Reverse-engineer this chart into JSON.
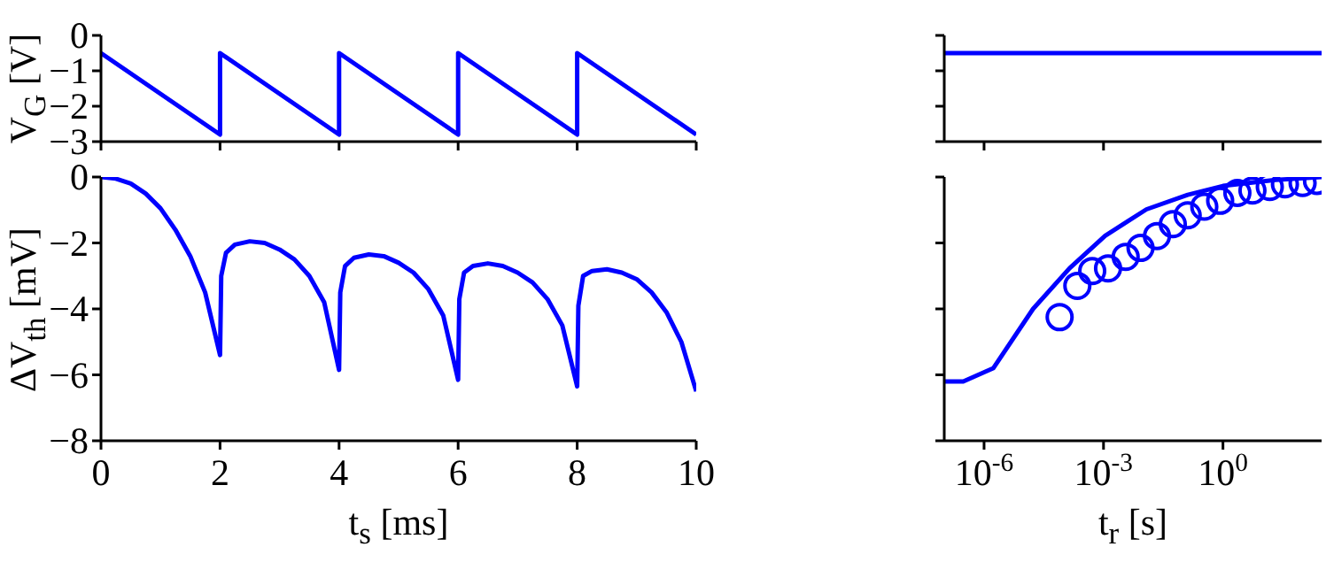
{
  "chart_data": [
    {
      "type": "line",
      "ylabel": "V$_{G}$ [V]",
      "xlim": [
        0,
        10
      ],
      "xticks": [
        0,
        2,
        4,
        6,
        8,
        10
      ],
      "ylim": [
        -3,
        0
      ],
      "yticks": [
        0,
        -1,
        -2,
        -3
      ],
      "tick_labels": "y",
      "series": [
        {
          "color": "#0000ff",
          "x": [
            0,
            2,
            2,
            4,
            4,
            6,
            6,
            8,
            8,
            10
          ],
          "values": [
            -0.5,
            -2.8,
            -0.5,
            -2.8,
            -0.5,
            -2.8,
            -0.5,
            -2.8,
            -0.5,
            -2.8
          ]
        }
      ]
    },
    {
      "type": "line",
      "xlim": [
        1e-07,
        300
      ],
      "xticks": [
        {
          "value": 1e-06,
          "label": null
        },
        {
          "value": 0.001,
          "label": null
        },
        {
          "value": 1,
          "label": null
        }
      ],
      "ylim": [
        -3,
        0
      ],
      "yticks": [
        0,
        -1,
        -2,
        -3
      ],
      "tick_labels": false,
      "log": "x",
      "series": [
        {
          "color": "#0000ff",
          "x": [
            1e-07,
            300
          ],
          "values": [
            -0.5,
            -0.5
          ]
        }
      ]
    },
    {
      "type": "line",
      "xlabel": "t$_{s}$ [ms]",
      "ylabel": "ΔV$_{th}$ [mV]",
      "xlim": [
        0,
        10
      ],
      "xticks": [
        0,
        2,
        4,
        6,
        8,
        10
      ],
      "ylim": [
        -8,
        0
      ],
      "yticks": [
        0,
        -2,
        -4,
        -6,
        -8
      ],
      "series": [
        {
          "color": "#0000ff",
          "x": [
            0,
            0.25,
            0.5,
            0.75,
            1,
            1.25,
            1.5,
            1.75,
            2,
            2.02,
            2.1,
            2.25,
            2.5,
            2.75,
            3,
            3.25,
            3.5,
            3.75,
            4,
            4.02,
            4.1,
            4.25,
            4.5,
            4.75,
            5,
            5.25,
            5.5,
            5.75,
            6,
            6.02,
            6.1,
            6.25,
            6.5,
            6.75,
            7,
            7.25,
            7.5,
            7.75,
            8,
            8.02,
            8.1,
            8.25,
            8.5,
            8.75,
            9,
            9.25,
            9.5,
            9.75,
            10
          ],
          "values": [
            0,
            -0.05,
            -0.2,
            -0.5,
            -0.95,
            -1.6,
            -2.4,
            -3.5,
            -5.4,
            -3,
            -2.3,
            -2.05,
            -1.95,
            -2,
            -2.2,
            -2.5,
            -3,
            -3.8,
            -5.85,
            -3.5,
            -2.7,
            -2.45,
            -2.35,
            -2.4,
            -2.6,
            -2.9,
            -3.4,
            -4.2,
            -6.15,
            -3.7,
            -2.9,
            -2.7,
            -2.62,
            -2.7,
            -2.9,
            -3.2,
            -3.7,
            -4.5,
            -6.35,
            -3.9,
            -3,
            -2.85,
            -2.8,
            -2.9,
            -3.1,
            -3.5,
            -4.1,
            -5,
            -6.5
          ]
        }
      ]
    },
    {
      "type": "line",
      "xlabel": "t$_{r}$ [s]",
      "xlim": [
        1e-07,
        300
      ],
      "xticks": [
        {
          "value": 1e-06,
          "label": "10$^{-6}$"
        },
        {
          "value": 0.001,
          "label": "10$^{-3}$"
        },
        {
          "value": 1,
          "label": "10$^{0}$"
        }
      ],
      "ylim": [
        -8,
        0
      ],
      "yticks": [
        0,
        -2,
        -4,
        -6,
        -8
      ],
      "tick_labels": "x",
      "log": "x",
      "series": [
        {
          "color": "#0000ff",
          "x": [
            1e-07,
            3e-07,
            1.7e-06,
            1.7e-05,
            0.00014,
            0.0011,
            0.012,
            0.13,
            1,
            21,
            300
          ],
          "values": [
            -6.2,
            -6.2,
            -5.8,
            -4,
            -2.77,
            -1.78,
            -0.98,
            -0.54,
            -0.27,
            -0.09,
            0
          ]
        },
        {
          "type": "scatter",
          "marker": "circle",
          "color": "#0000ff",
          "x": [
            7.9e-05,
            0.00022,
            0.00052,
            0.0013,
            0.0036,
            0.0085,
            0.022,
            0.055,
            0.13,
            0.34,
            0.85,
            2.3,
            5.5,
            15,
            36,
            100,
            230
          ],
          "values": [
            -4.25,
            -3.3,
            -2.85,
            -2.77,
            -2.42,
            -2.15,
            -1.79,
            -1.43,
            -1.16,
            -0.9,
            -0.72,
            -0.48,
            -0.41,
            -0.3,
            -0.22,
            -0.18,
            -0.12
          ]
        }
      ]
    }
  ]
}
